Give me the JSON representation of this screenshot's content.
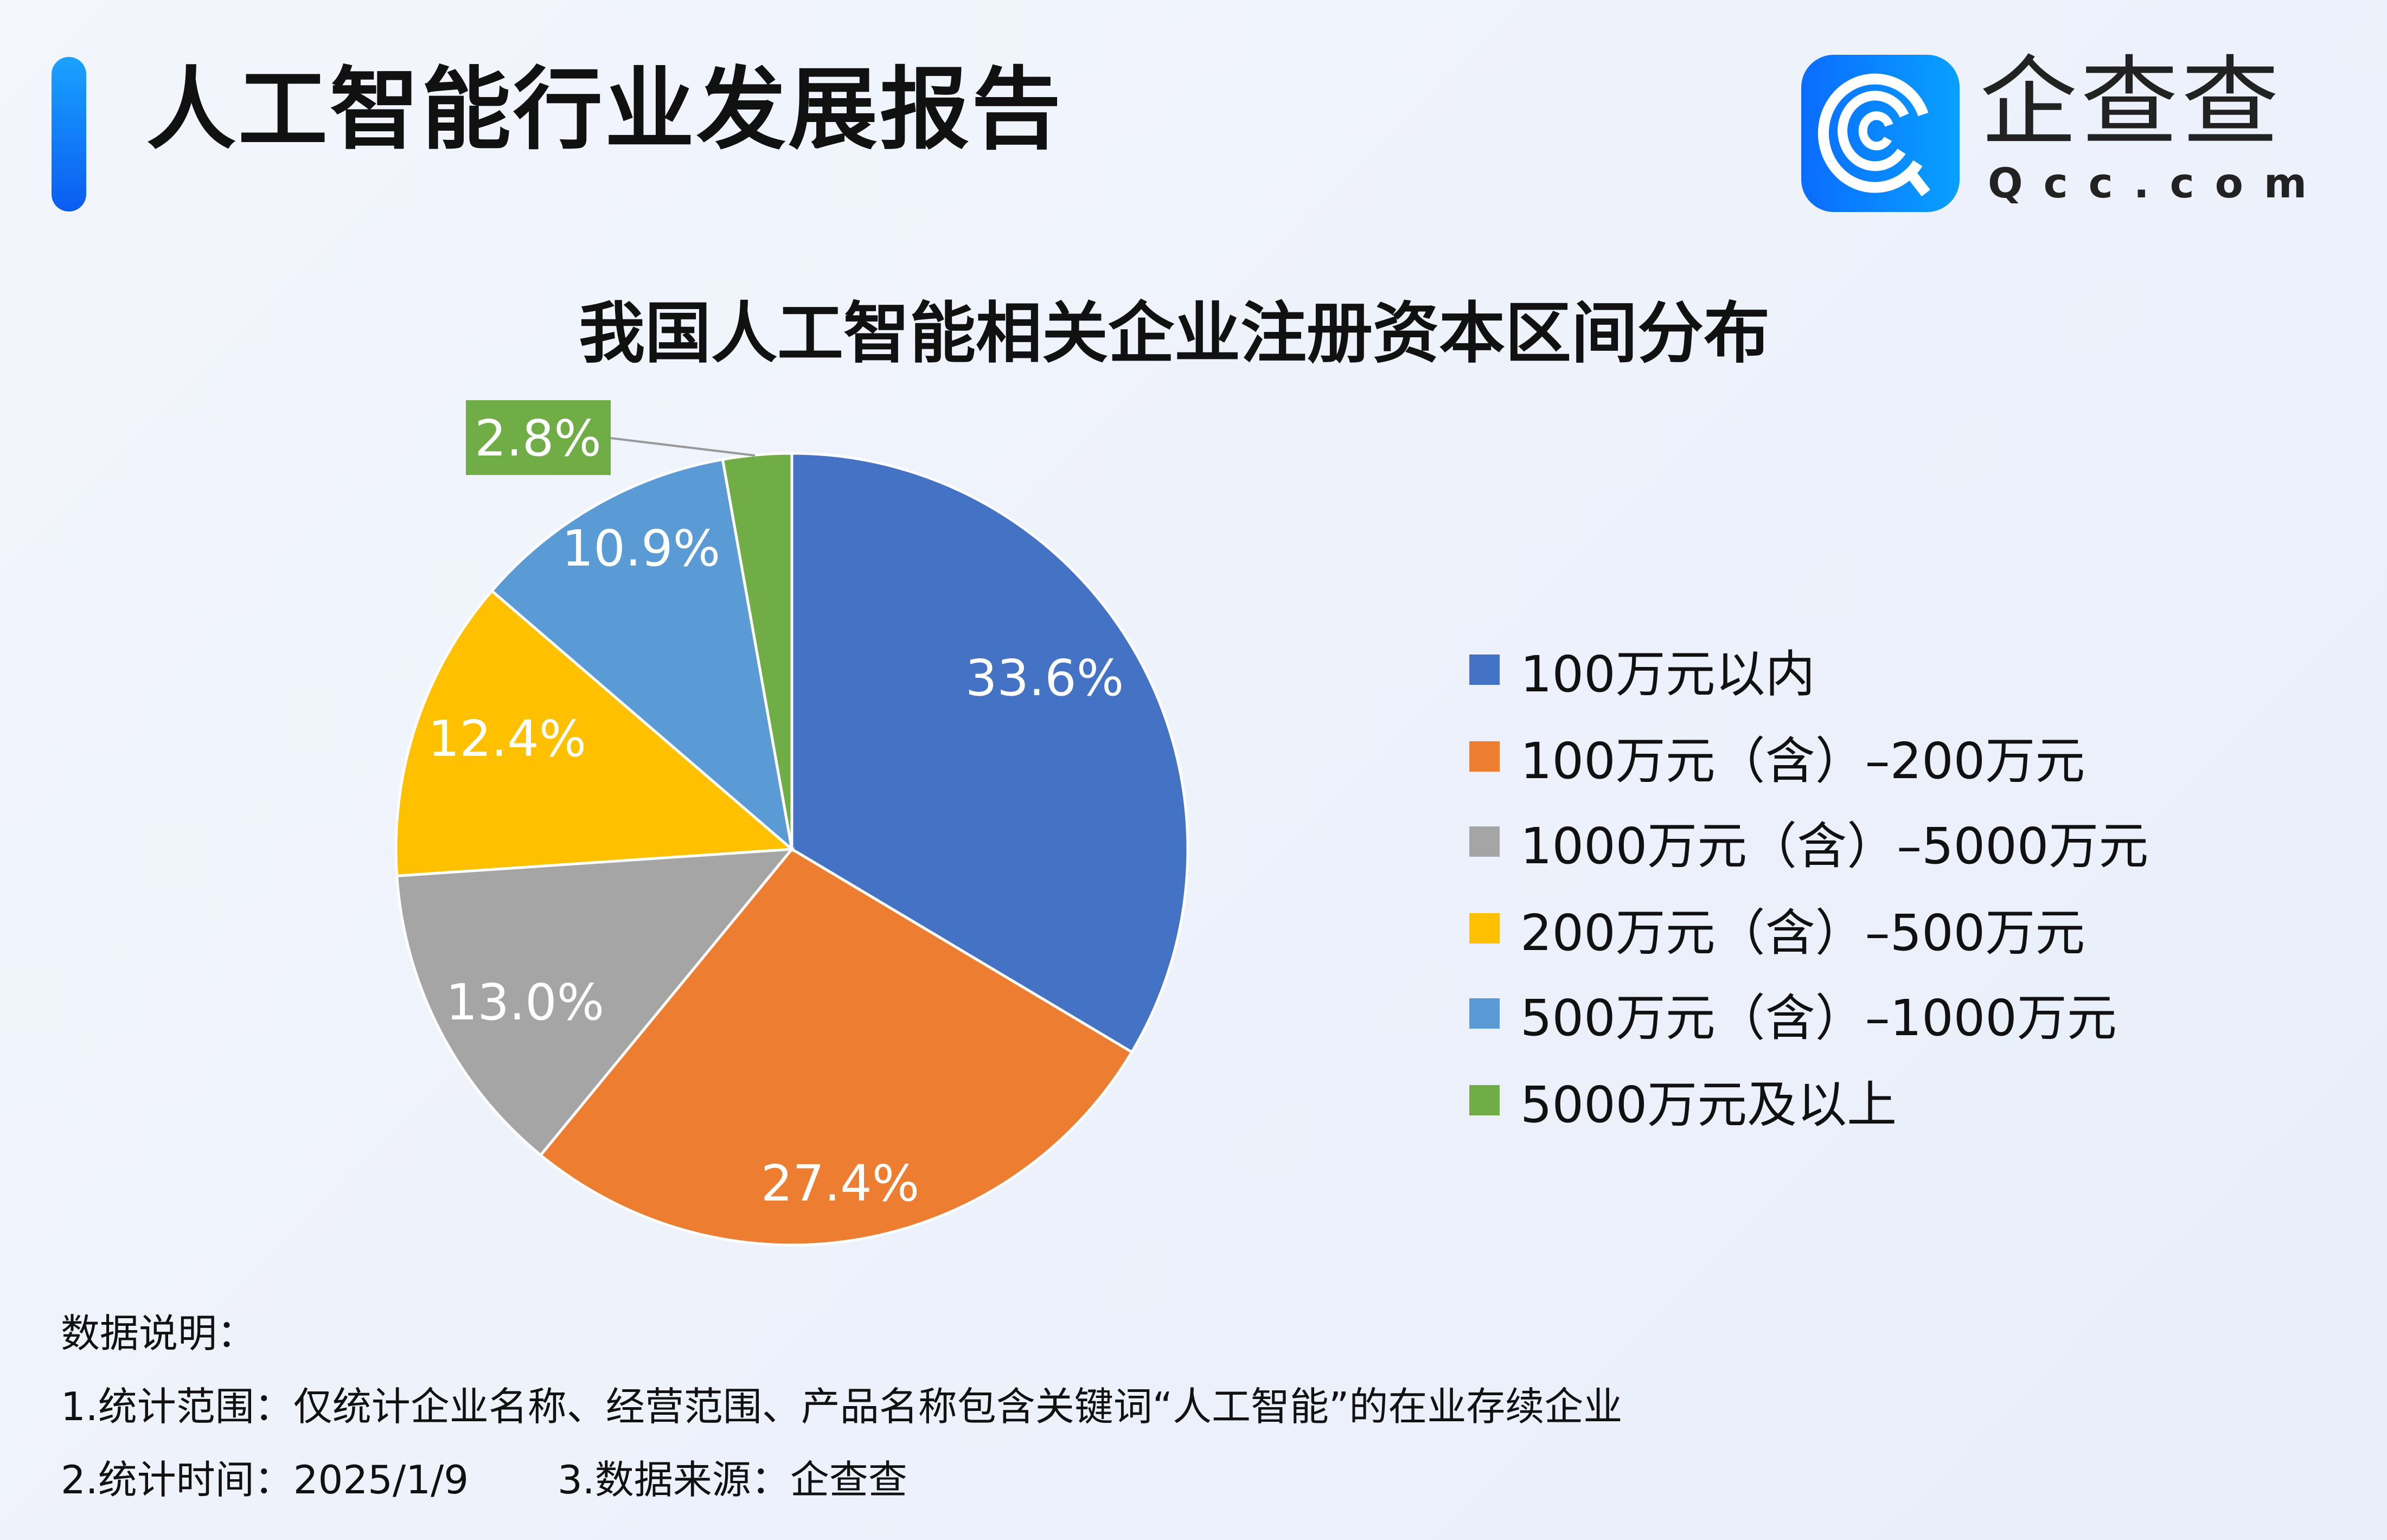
{
  "header": {
    "title": "人工智能行业发展报告"
  },
  "logo": {
    "cn": "企查查",
    "en": "Qcc.com"
  },
  "chart_data": {
    "type": "pie",
    "title": "我国人工智能相关企业注册资本区间分布",
    "categories": [
      "100万元以内",
      "100万元（含）–200万元",
      "1000万元（含）–5000万元",
      "200万元（含）–500万元",
      "500万元（含）–1000万元",
      "5000万元及以上"
    ],
    "values": [
      33.6,
      27.4,
      13.0,
      12.4,
      10.9,
      2.8
    ],
    "labels": [
      "33.6%",
      "27.4%",
      "13.0%",
      "12.4%",
      "10.9%",
      "2.8%"
    ],
    "colors": [
      "#4472c4",
      "#ed7d31",
      "#a5a5a5",
      "#ffc000",
      "#5b9bd5",
      "#70ad47"
    ],
    "start_angle": "12 o'clock, clockwise",
    "legend_position": "right"
  },
  "footer": {
    "heading": "数据说明：",
    "line1": "1.统计范围：仅统计企业名称、经营范围、产品名称包含关键词“人工智能”的在业存续企业",
    "line2a": "2.统计时间：2025/1/9",
    "line2b": "3.数据来源：企查查"
  }
}
